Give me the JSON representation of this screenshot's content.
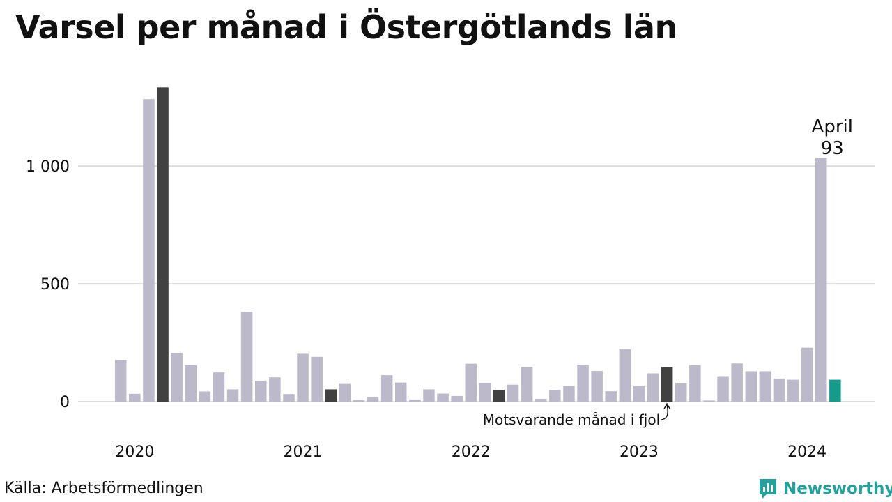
{
  "source_label": "Källa: Arbetsförmedlingen",
  "brand": {
    "name": "Newsworthy",
    "color": "#24a19c"
  },
  "chart_data": {
    "type": "bar",
    "title": "Varsel per månad i Östergötlands län",
    "xlabel": "",
    "ylabel": "",
    "ylim": [
      0,
      1400
    ],
    "y_ticks": [
      0,
      500,
      1000
    ],
    "y_tick_labels": [
      "0",
      "500",
      "1 000"
    ],
    "grid": true,
    "year_ticks": [
      {
        "index": 1,
        "label": "2020"
      },
      {
        "index": 13,
        "label": "2021"
      },
      {
        "index": 25,
        "label": "2022"
      },
      {
        "index": 37,
        "label": "2023"
      },
      {
        "index": 49,
        "label": "2024"
      }
    ],
    "colors": {
      "default": "#bcbaca",
      "comparison": "#414141",
      "current": "#139c8c",
      "grid": "#dddddd"
    },
    "values": [
      176,
      33,
      1284,
      1334,
      207,
      155,
      43,
      124,
      52,
      382,
      89,
      103,
      32,
      203,
      190,
      52,
      75,
      7,
      20,
      112,
      81,
      9,
      52,
      34,
      24,
      161,
      80,
      50,
      72,
      148,
      12,
      50,
      67,
      156,
      130,
      44,
      222,
      66,
      120,
      146,
      77,
      155,
      5,
      108,
      162,
      129,
      129,
      98,
      93,
      229,
      1036,
      93
    ],
    "highlights": [
      {
        "index": 3,
        "role": "comparison"
      },
      {
        "index": 15,
        "role": "comparison"
      },
      {
        "index": 27,
        "role": "comparison"
      },
      {
        "index": 39,
        "role": "comparison"
      },
      {
        "index": 51,
        "role": "current"
      }
    ],
    "annotations": {
      "current_month": "April",
      "current_value": "93",
      "comparison_note": "Motsvarande månad i fjol"
    }
  }
}
